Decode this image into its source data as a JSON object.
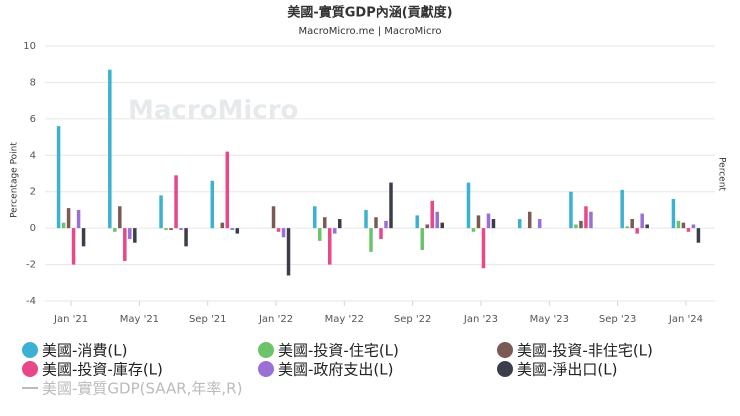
{
  "chart_data": {
    "type": "bar",
    "title": "美國-實質GDP內涵(貢獻度)",
    "subtitle": "MacroMicro.me | MacroMicro",
    "watermark": "MacroMicro",
    "y_label": "Percentage Point",
    "y2_label": "Percent",
    "x": [
      "2021-01",
      "2021-04",
      "2021-07",
      "2021-10",
      "2022-01",
      "2022-04",
      "2022-07",
      "2022-10",
      "2023-01",
      "2023-04",
      "2023-07",
      "2023-10",
      "2024-01"
    ],
    "xlim": [
      "2020-12",
      "2024-02"
    ],
    "xticks": [
      {
        "value": "2021-01",
        "label": "Jan '21"
      },
      {
        "value": "2021-05",
        "label": "May '21"
      },
      {
        "value": "2021-09",
        "label": "Sep '21"
      },
      {
        "value": "2022-01",
        "label": "Jan '22"
      },
      {
        "value": "2022-05",
        "label": "May '22"
      },
      {
        "value": "2022-09",
        "label": "Sep '22"
      },
      {
        "value": "2023-01",
        "label": "Jan '23"
      },
      {
        "value": "2023-05",
        "label": "May '23"
      },
      {
        "value": "2023-09",
        "label": "Sep '23"
      },
      {
        "value": "2024-01",
        "label": "Jan '24"
      }
    ],
    "ylim": [
      -4,
      10
    ],
    "yticks": [
      -4,
      -2,
      0,
      2,
      4,
      6,
      8,
      10
    ],
    "grid": true,
    "series": [
      {
        "name": "美國-消費(L)",
        "color": "#3cb1d3",
        "values": [
          5.6,
          8.7,
          1.8,
          2.6,
          0,
          1.2,
          1.0,
          0.7,
          2.5,
          0.5,
          2.0,
          2.1,
          1.6
        ]
      },
      {
        "name": "美國-投資-住宅(L)",
        "color": "#6cc46a",
        "values": [
          0.3,
          -0.2,
          -0.1,
          0,
          0,
          -0.7,
          -1.3,
          -1.2,
          -0.2,
          0,
          0.2,
          0.1,
          0.4
        ]
      },
      {
        "name": "美國-投資-非住宅(L)",
        "color": "#7a5a52",
        "values": [
          1.1,
          1.2,
          -0.1,
          0.3,
          1.2,
          0.6,
          0.6,
          0.2,
          0.7,
          0.9,
          0.4,
          0.5,
          0.3
        ]
      },
      {
        "name": "美國-投資-庫存(L)",
        "color": "#e8478a",
        "values": [
          -2.0,
          -1.8,
          2.9,
          4.2,
          -0.2,
          -2.0,
          -0.6,
          1.5,
          -2.2,
          0,
          1.2,
          -0.3,
          -0.2
        ]
      },
      {
        "name": "美國-政府支出(L)",
        "color": "#9a6fd6",
        "values": [
          1.0,
          -0.6,
          -0.1,
          -0.1,
          -0.5,
          -0.3,
          0.4,
          0.9,
          0.8,
          0.5,
          0.9,
          0.8,
          0.2
        ]
      },
      {
        "name": "美國-淨出口(L)",
        "color": "#3a3e4a",
        "values": [
          -1.0,
          -0.8,
          -1.0,
          -0.3,
          -2.6,
          0.5,
          2.5,
          0.3,
          0.5,
          0,
          0,
          0.2,
          -0.8
        ]
      }
    ],
    "hidden_series": [
      {
        "name": "美國-實質GDP(SAAR,年率,R)",
        "color": "#bbbbbb"
      }
    ]
  }
}
